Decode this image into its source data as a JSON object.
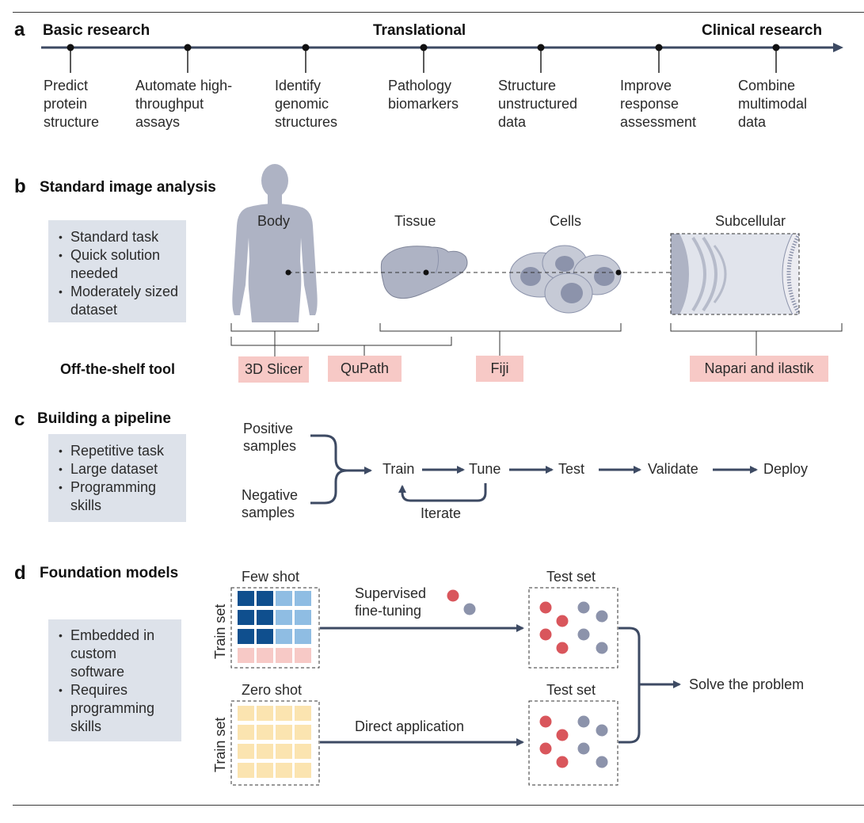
{
  "panel_a": {
    "letter": "a",
    "headings": {
      "left": "Basic research",
      "center": "Translational",
      "right": "Clinical research"
    },
    "steps": [
      "Predict\nprotein\nstructure",
      "Automate high-\nthroughput\nassays",
      "Identify\ngenomic\nstructures",
      "Pathology\nbiomarkers",
      "Structure\nunstructured\ndata",
      "Improve\nresponse\nassessment",
      "Combine\nmultimodal\ndata"
    ]
  },
  "panel_b": {
    "letter": "b",
    "title": "Standard image analysis",
    "bullets": [
      "Standard task",
      "Quick solution needed",
      "Moderately sized dataset"
    ],
    "scales": {
      "body": "Body",
      "tissue": "Tissue",
      "cells": "Cells",
      "subcellular": "Subcellular"
    },
    "tools_label": "Off-the-shelf tool",
    "tools": [
      "3D Slicer",
      "QuPath",
      "Fiji",
      "Napari and ilastik"
    ]
  },
  "panel_c": {
    "letter": "c",
    "title": "Building a pipeline",
    "bullets": [
      "Repetitive task",
      "Large dataset",
      "Programming skills"
    ],
    "positive": "Positive\nsamples",
    "negative": "Negative\nsamples",
    "steps": [
      "Train",
      "Tune",
      "Test",
      "Validate",
      "Deploy"
    ],
    "iterate": "Iterate"
  },
  "panel_d": {
    "letter": "d",
    "title": "Foundation models",
    "bullets": [
      "Embedded in custom software",
      "Requires programming skills"
    ],
    "few_shot": "Few shot",
    "zero_shot": "Zero shot",
    "train_set": "Train set",
    "test_set": "Test set",
    "supervised": "Supervised\nfine-tuning",
    "direct": "Direct application",
    "solve": "Solve the problem"
  },
  "colors": {
    "arrow": "#3d4a63",
    "box": "#dde2ea",
    "tool": "#f7c9c6",
    "dark_blue": "#0f4f8e",
    "light_blue": "#8fbde3",
    "pink": "#f7c9c6",
    "yellow": "#fbe4b0",
    "red_dot": "#d9565c",
    "grey_dot": "#8c93ab",
    "silhouette": "#aeb3c4"
  }
}
